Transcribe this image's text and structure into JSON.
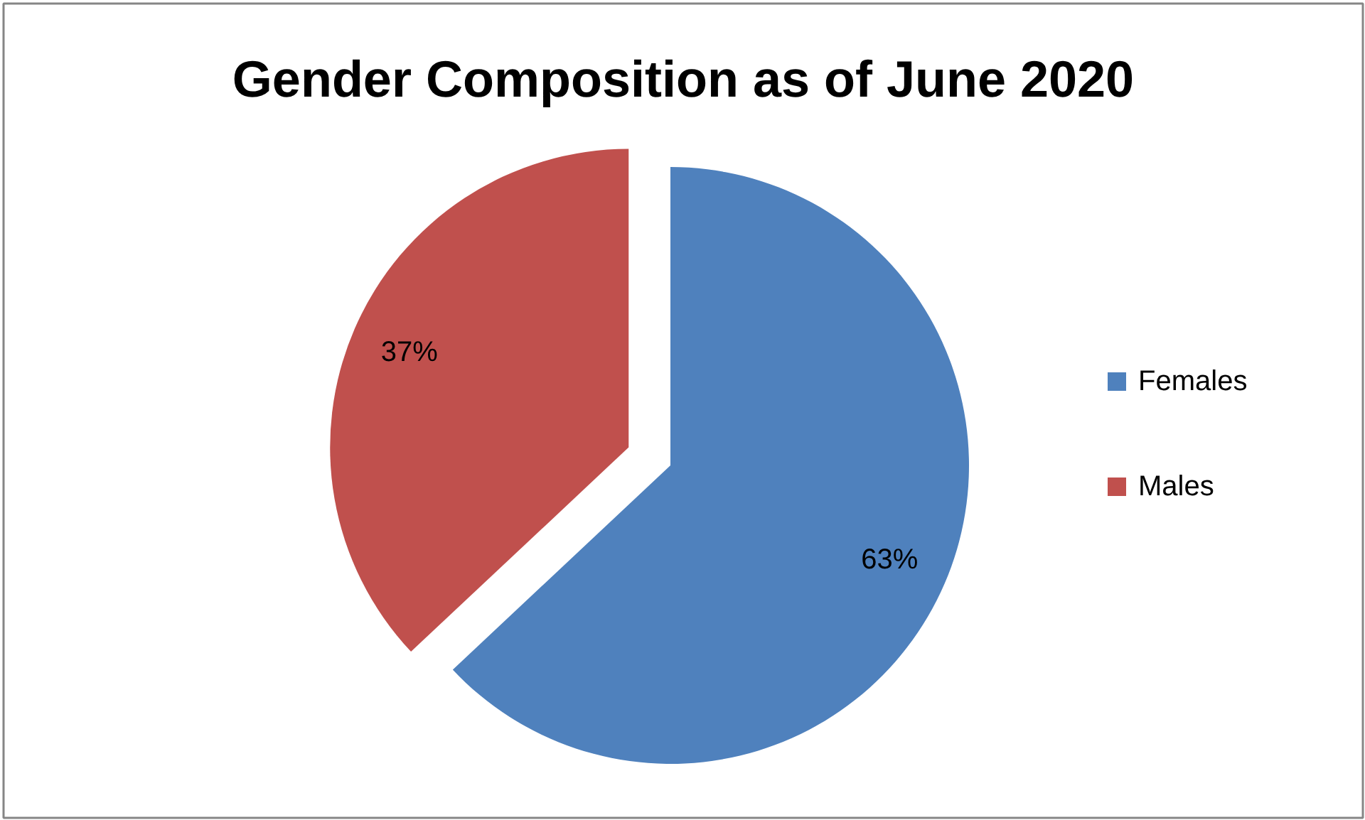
{
  "chart_data": {
    "type": "pie",
    "title": "Gender Composition as of June 2020",
    "categories": [
      "Females",
      "Males"
    ],
    "values": [
      63,
      37
    ],
    "colors": [
      "#4f81bd",
      "#c0504d"
    ],
    "value_labels": [
      "63%",
      "37%"
    ],
    "legend": "right"
  }
}
